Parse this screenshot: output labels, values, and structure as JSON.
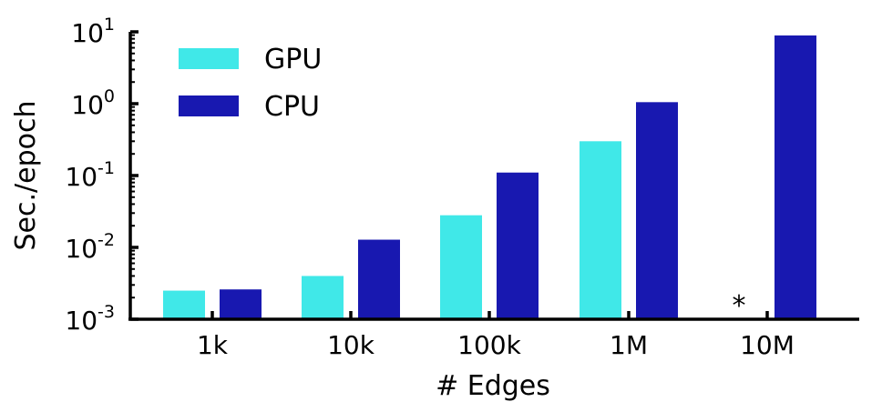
{
  "chart_data": {
    "type": "bar",
    "scale": "log",
    "xlabel": "# Edges",
    "ylabel": "Sec./epoch",
    "ylim": [
      0.001,
      10
    ],
    "yticks": [
      {
        "base": "10",
        "exp": "-3"
      },
      {
        "base": "10",
        "exp": "-2"
      },
      {
        "base": "10",
        "exp": "-1"
      },
      {
        "base": "10",
        "exp": "0"
      },
      {
        "base": "10",
        "exp": "1"
      }
    ],
    "categories": [
      "1k",
      "10k",
      "100k",
      "1M",
      "10M"
    ],
    "series": [
      {
        "name": "GPU",
        "color": "#40E8E8",
        "values": [
          0.0025,
          0.004,
          0.028,
          0.3,
          null
        ]
      },
      {
        "name": "CPU",
        "color": "#1818B0",
        "values": [
          0.0026,
          0.0128,
          0.11,
          1.05,
          8.9
        ]
      }
    ],
    "missing_marker": "*",
    "legend": "top-left"
  }
}
